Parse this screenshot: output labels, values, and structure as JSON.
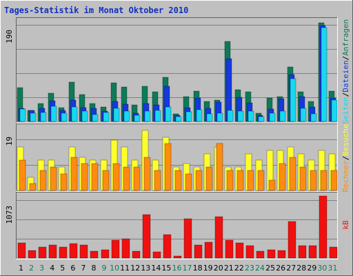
{
  "title": "Tages-Statistik im Monat Oktober 2010",
  "colors": {
    "background": "#c0c0c0",
    "frame_light": "#ffffff",
    "frame_dark": "#606060",
    "grid": "#808080",
    "anfragen": "#0d7a58",
    "dateien": "#1538e0",
    "seiten": "#18d8f0",
    "besuche": "#ffff30",
    "rechner": "#ff8c10",
    "kb": "#f01010",
    "weekday_label": "#000000",
    "weekend_label": "#0d7a58"
  },
  "chart_data": [
    {
      "type": "bar",
      "panel": "top",
      "scale_label": "190",
      "ylim": [
        0,
        190
      ],
      "grid_lines": 4,
      "legend": [
        {
          "text": "Seiten",
          "color": "#18d8f0"
        },
        {
          "text": "/",
          "color": "#000000"
        },
        {
          "text": "Dateien",
          "color": "#1538e0"
        },
        {
          "text": "/",
          "color": "#000000"
        },
        {
          "text": "Anfragen",
          "color": "#0d7a58"
        }
      ],
      "series": [
        {
          "name": "Anfragen",
          "values": [
            63,
            21,
            33,
            53,
            26,
            74,
            50,
            34,
            27,
            73,
            65,
            31,
            66,
            56,
            83,
            14,
            46,
            57,
            38,
            40,
            150,
            60,
            56,
            15,
            44,
            46,
            102,
            56,
            37,
            185,
            57
          ]
        },
        {
          "name": "Dateien",
          "values": [
            24,
            21,
            25,
            39,
            21,
            40,
            26,
            25,
            20,
            37,
            32,
            16,
            34,
            31,
            66,
            12,
            26,
            44,
            24,
            36,
            117,
            45,
            35,
            12,
            23,
            43,
            88,
            46,
            27,
            180,
            44
          ]
        },
        {
          "name": "Seiten",
          "values": [
            23,
            16,
            17,
            29,
            16,
            27,
            19,
            13,
            17,
            25,
            20,
            12,
            20,
            21,
            27,
            9,
            18,
            22,
            14,
            16,
            21,
            19,
            20,
            9,
            16,
            20,
            80,
            24,
            14,
            176,
            40
          ]
        }
      ]
    },
    {
      "type": "bar",
      "panel": "middle",
      "scale_label": "19",
      "ylim": [
        0,
        19
      ],
      "grid_lines": 2,
      "legend": [
        {
          "text": "Rechner",
          "color": "#ff8c10"
        },
        {
          "text": "/",
          "color": "#000000"
        },
        {
          "text": "Besuche",
          "color": "#ffff30"
        }
      ],
      "series": [
        {
          "name": "Besuche",
          "values": [
            13,
            4,
            9,
            9,
            7,
            13,
            10,
            9,
            9,
            15,
            13,
            9,
            18,
            9,
            16,
            7,
            8,
            7,
            11,
            13,
            7,
            7,
            11,
            9,
            12,
            12,
            13,
            11,
            9,
            12,
            11
          ]
        },
        {
          "name": "Rechner",
          "values": [
            9,
            2,
            6,
            7,
            5,
            10,
            8,
            8,
            6,
            8,
            7,
            7,
            10,
            6,
            14,
            6,
            5,
            6,
            7,
            14,
            6,
            6,
            6,
            6,
            3,
            8,
            10,
            7,
            6,
            6,
            6
          ]
        }
      ]
    },
    {
      "type": "bar",
      "panel": "bottom",
      "scale_label": "1073",
      "ylim": [
        0,
        1073
      ],
      "grid_lines": 3,
      "legend": [
        {
          "text": "kB",
          "color": "#f01010"
        }
      ],
      "series": [
        {
          "name": "kB",
          "values": [
            260,
            130,
            195,
            225,
            195,
            245,
            230,
            125,
            140,
            315,
            335,
            120,
            750,
            110,
            400,
            40,
            675,
            230,
            280,
            715,
            315,
            265,
            220,
            125,
            140,
            135,
            630,
            220,
            220,
            1073,
            195
          ]
        }
      ]
    }
  ],
  "days": [
    "1",
    "2",
    "3",
    "4",
    "5",
    "6",
    "7",
    "8",
    "9",
    "10",
    "11",
    "12",
    "13",
    "14",
    "15",
    "16",
    "17",
    "18",
    "19",
    "20",
    "21",
    "22",
    "23",
    "24",
    "25",
    "26",
    "27",
    "28",
    "29",
    "30",
    "31"
  ],
  "weekend_days": [
    2,
    3,
    9,
    10,
    16,
    17,
    23,
    24,
    30,
    31
  ]
}
